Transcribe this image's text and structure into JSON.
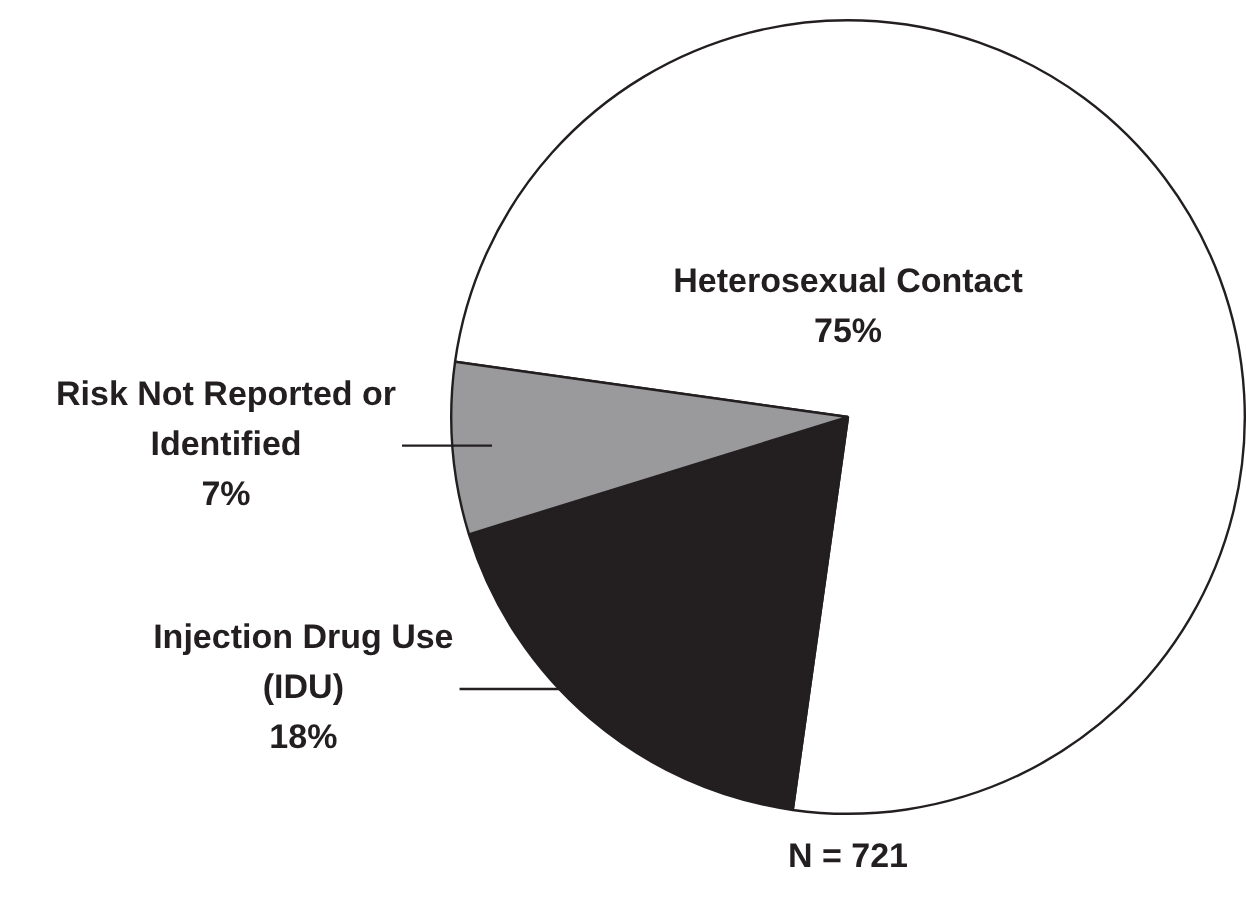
{
  "chart_data": {
    "type": "pie",
    "categories": [
      "Heterosexual Contact",
      "Injection Drug Use (IDU)",
      "Risk Not Reported or Identified"
    ],
    "values": [
      75,
      18,
      7
    ],
    "colors": [
      "#ffffff",
      "#231f20",
      "#9a9a9c"
    ],
    "value_labels": [
      "75%",
      "18%",
      "7%"
    ],
    "annotations": [
      "N = 721"
    ]
  }
}
